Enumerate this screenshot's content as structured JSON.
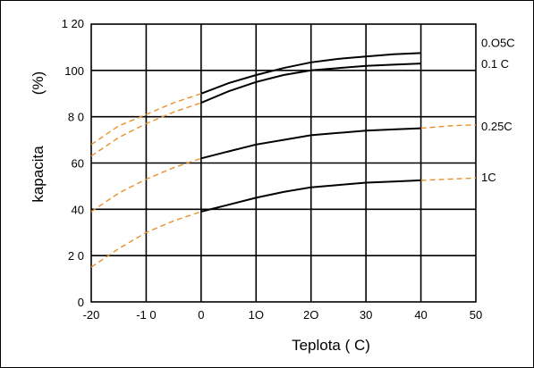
{
  "chart_data": {
    "type": "line",
    "ylabel_main": "kapacita",
    "ylabel_unit": "(%)",
    "xlabel": "Teplota ( C)",
    "xlim": [
      -20,
      50
    ],
    "ylim": [
      0,
      120
    ],
    "x_ticks": [
      {
        "value": -20,
        "label": "-20"
      },
      {
        "value": -10,
        "label": "-1 0"
      },
      {
        "value": 0,
        "label": "0"
      },
      {
        "value": 10,
        "label": "1O"
      },
      {
        "value": 20,
        "label": "2O"
      },
      {
        "value": 30,
        "label": "30"
      },
      {
        "value": 40,
        "label": "40"
      },
      {
        "value": 50,
        "label": "50"
      }
    ],
    "y_ticks": [
      {
        "value": 0,
        "label": "0"
      },
      {
        "value": 20,
        "label": "2 0"
      },
      {
        "value": 40,
        "label": "40"
      },
      {
        "value": 60,
        "label": "60"
      },
      {
        "value": 80,
        "label": "8 0"
      },
      {
        "value": 100,
        "label": "100"
      },
      {
        "value": 120,
        "label": "1 20"
      }
    ],
    "grid": true,
    "colors": {
      "measured": "#000000",
      "extrapolated": "#e8912a"
    },
    "series": [
      {
        "name": "0.O5C",
        "label_y": 112,
        "solid": [
          [
            0,
            90
          ],
          [
            5,
            94.5
          ],
          [
            10,
            98
          ],
          [
            15,
            101
          ],
          [
            20,
            103.5
          ],
          [
            25,
            105
          ],
          [
            30,
            106
          ],
          [
            35,
            107
          ],
          [
            40,
            107.5
          ]
        ],
        "dashed": [
          [
            -20,
            68
          ],
          [
            -15,
            76
          ],
          [
            -10,
            81
          ],
          [
            -5,
            86
          ],
          [
            0,
            90
          ]
        ]
      },
      {
        "name": "0.1 C",
        "label_y": 103,
        "solid": [
          [
            0,
            86
          ],
          [
            5,
            91
          ],
          [
            10,
            95
          ],
          [
            15,
            98
          ],
          [
            20,
            100
          ],
          [
            25,
            101
          ],
          [
            30,
            102
          ],
          [
            35,
            102.5
          ],
          [
            40,
            103
          ]
        ],
        "dashed": [
          [
            -20,
            63
          ],
          [
            -15,
            71
          ],
          [
            -10,
            77
          ],
          [
            -5,
            82
          ],
          [
            0,
            86
          ]
        ]
      },
      {
        "name": "0.25C",
        "label_y": 76,
        "solid": [
          [
            0,
            62
          ],
          [
            5,
            65
          ],
          [
            10,
            68
          ],
          [
            15,
            70
          ],
          [
            20,
            72
          ],
          [
            25,
            73
          ],
          [
            30,
            74
          ],
          [
            35,
            74.5
          ],
          [
            40,
            75
          ]
        ],
        "dashed_left": [
          [
            -20,
            39
          ],
          [
            -15,
            47
          ],
          [
            -10,
            53
          ],
          [
            -5,
            58
          ],
          [
            0,
            62
          ]
        ],
        "dashed_right": [
          [
            40,
            75
          ],
          [
            45,
            76
          ],
          [
            50,
            76.5
          ]
        ]
      },
      {
        "name": "1C",
        "label_y": 54,
        "solid": [
          [
            0,
            39
          ],
          [
            5,
            42
          ],
          [
            10,
            45
          ],
          [
            15,
            47.5
          ],
          [
            20,
            49.5
          ],
          [
            25,
            50.5
          ],
          [
            30,
            51.5
          ],
          [
            35,
            52
          ],
          [
            40,
            52.5
          ]
        ],
        "dashed_left": [
          [
            -20,
            15
          ],
          [
            -15,
            23
          ],
          [
            -10,
            30
          ],
          [
            -5,
            35
          ],
          [
            0,
            39
          ]
        ],
        "dashed_right": [
          [
            40,
            52.5
          ],
          [
            45,
            53
          ],
          [
            50,
            53.5
          ]
        ]
      }
    ]
  }
}
